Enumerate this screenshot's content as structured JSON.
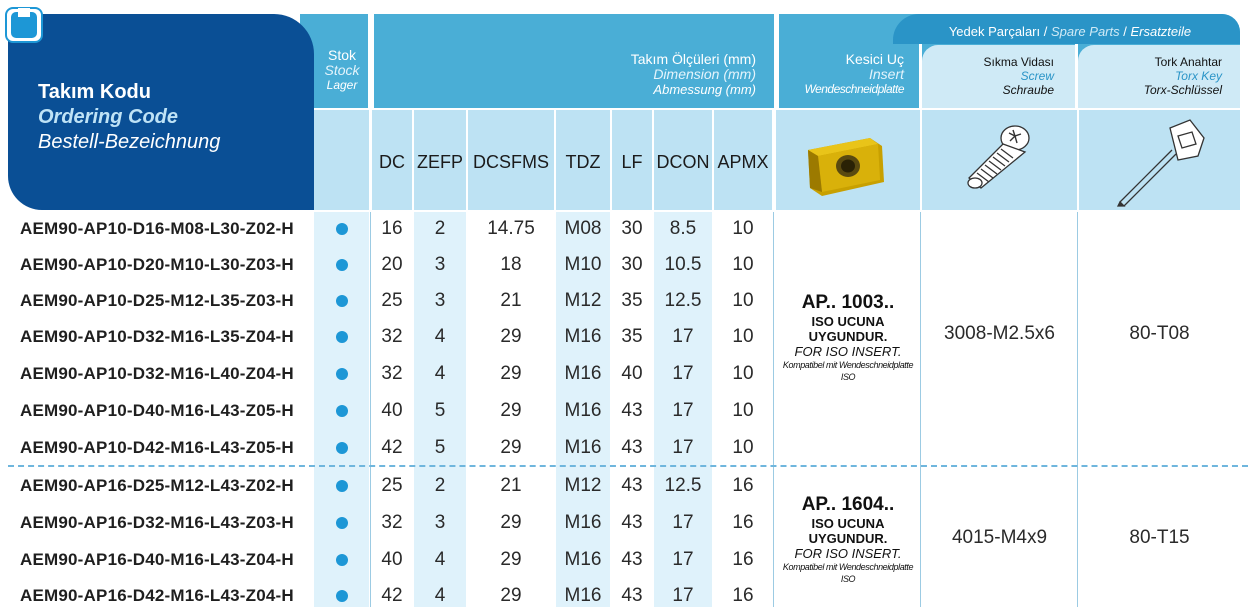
{
  "header": {
    "ordering_code": [
      "Takım Kodu",
      "Ordering Code",
      "Bestell-Bezeichnung"
    ],
    "stock": [
      "Stok",
      "Stock",
      "Lager"
    ],
    "dimension": [
      "Takım Ölçüleri (mm)",
      "Dimension (mm)",
      "Abmessung (mm)"
    ],
    "insert": [
      "Kesici Uç",
      "Insert",
      "Wendeschneidplatte"
    ],
    "spare_parts_title": "Yedek Parçaları",
    "spare_parts_en": "Spare Parts",
    "spare_parts_de": "Ersatzteile",
    "screw": [
      "Sıkma Vidası",
      "Screw",
      "Schraube"
    ],
    "torx_key": [
      "Tork Anahtar",
      "Torx Key",
      "Torx-Schlüssel"
    ],
    "columns": [
      "DC",
      "ZEFP",
      "DCSFMS",
      "TDZ",
      "LF",
      "DCON",
      "APMX"
    ]
  },
  "groups": [
    {
      "insert_code": "AP.. 1003..",
      "insert_line1": "ISO UCUNA",
      "insert_line2": "UYGUNDUR.",
      "insert_line3": "FOR ISO INSERT.",
      "insert_line4": "Kompatibel mit Wendeschneidplatte ISO",
      "screw": "3008-M2.5x6",
      "key": "80-T08"
    },
    {
      "insert_code": "AP.. 1604..",
      "insert_line1": "ISO UCUNA",
      "insert_line2": "UYGUNDUR.",
      "insert_line3": "FOR ISO INSERT.",
      "insert_line4": "Kompatibel mit Wendeschneidplatte ISO",
      "screw": "4015-M4x9",
      "key": "80-T15"
    }
  ],
  "rows": [
    {
      "code": "AEM90-AP10-D16-M08-L30-Z02-H",
      "dc": "16",
      "zefp": "2",
      "dcsfms": "14.75",
      "tdz": "M08",
      "lf": "30",
      "dcon": "8.5",
      "apmx": "10"
    },
    {
      "code": "AEM90-AP10-D20-M10-L30-Z03-H",
      "dc": "20",
      "zefp": "3",
      "dcsfms": "18",
      "tdz": "M10",
      "lf": "30",
      "dcon": "10.5",
      "apmx": "10"
    },
    {
      "code": "AEM90-AP10-D25-M12-L35-Z03-H",
      "dc": "25",
      "zefp": "3",
      "dcsfms": "21",
      "tdz": "M12",
      "lf": "35",
      "dcon": "12.5",
      "apmx": "10"
    },
    {
      "code": "AEM90-AP10-D32-M16-L35-Z04-H",
      "dc": "32",
      "zefp": "4",
      "dcsfms": "29",
      "tdz": "M16",
      "lf": "35",
      "dcon": "17",
      "apmx": "10"
    },
    {
      "code": "AEM90-AP10-D32-M16-L40-Z04-H",
      "dc": "32",
      "zefp": "4",
      "dcsfms": "29",
      "tdz": "M16",
      "lf": "40",
      "dcon": "17",
      "apmx": "10"
    },
    {
      "code": "AEM90-AP10-D40-M16-L43-Z05-H",
      "dc": "40",
      "zefp": "5",
      "dcsfms": "29",
      "tdz": "M16",
      "lf": "43",
      "dcon": "17",
      "apmx": "10"
    },
    {
      "code": "AEM90-AP10-D42-M16-L43-Z05-H",
      "dc": "42",
      "zefp": "5",
      "dcsfms": "29",
      "tdz": "M16",
      "lf": "43",
      "dcon": "17",
      "apmx": "10"
    },
    {
      "code": "AEM90-AP16-D25-M12-L43-Z02-H",
      "dc": "25",
      "zefp": "2",
      "dcsfms": "21",
      "tdz": "M12",
      "lf": "43",
      "dcon": "12.5",
      "apmx": "16"
    },
    {
      "code": "AEM90-AP16-D32-M16-L43-Z03-H",
      "dc": "32",
      "zefp": "3",
      "dcsfms": "29",
      "tdz": "M16",
      "lf": "43",
      "dcon": "17",
      "apmx": "16"
    },
    {
      "code": "AEM90-AP16-D40-M16-L43-Z04-H",
      "dc": "40",
      "zefp": "4",
      "dcsfms": "29",
      "tdz": "M16",
      "lf": "43",
      "dcon": "17",
      "apmx": "16"
    },
    {
      "code": "AEM90-AP16-D42-M16-L43-Z04-H",
      "dc": "42",
      "zefp": "4",
      "dcsfms": "29",
      "tdz": "M16",
      "lf": "43",
      "dcon": "17",
      "apmx": "16"
    }
  ],
  "icons": [
    "tab-corner-icon",
    "insert-image",
    "screw-image",
    "torx-key-image",
    "stock-dot-icon"
  ],
  "colors": {
    "navy": "#0a4f95",
    "teal": "#4aaed6",
    "light": "#cfeaf6",
    "dot": "#1d97d6"
  }
}
